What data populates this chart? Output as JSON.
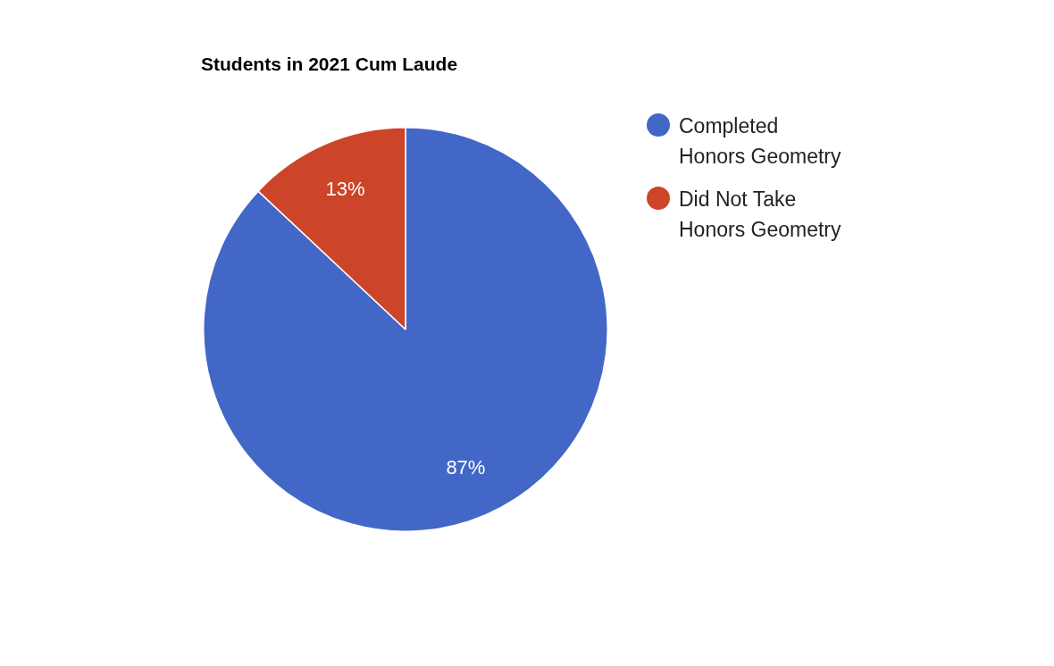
{
  "chart_data": {
    "type": "pie",
    "title": "Students in 2021 Cum Laude",
    "categories": [
      "Completed Honors Geometry",
      "Did Not Take Honors Geometry"
    ],
    "values": [
      87,
      13
    ],
    "colors": [
      "#4267c6",
      "#cc4528"
    ],
    "value_labels": [
      "87%",
      "13%"
    ],
    "legend": "top right"
  }
}
